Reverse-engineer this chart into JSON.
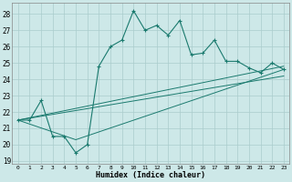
{
  "xlabel": "Humidex (Indice chaleur)",
  "bg_color": "#cde8e8",
  "grid_color": "#aacccc",
  "line_color": "#1a7a6e",
  "xlim": [
    -0.5,
    23.5
  ],
  "ylim": [
    18.8,
    28.7
  ],
  "yticks": [
    19,
    20,
    21,
    22,
    23,
    24,
    25,
    26,
    27,
    28
  ],
  "xticks": [
    0,
    1,
    2,
    3,
    4,
    5,
    6,
    7,
    8,
    9,
    10,
    11,
    12,
    13,
    14,
    15,
    16,
    17,
    18,
    19,
    20,
    21,
    22,
    23
  ],
  "line1_x": [
    0,
    1,
    2,
    3,
    4,
    5,
    6,
    7,
    8,
    9,
    10,
    11,
    12,
    13,
    14,
    15,
    16,
    17,
    18,
    19,
    20,
    21,
    22,
    23
  ],
  "line1_y": [
    21.5,
    21.5,
    22.7,
    20.5,
    20.5,
    19.5,
    20.0,
    24.8,
    26.0,
    26.4,
    28.2,
    27.0,
    27.3,
    26.7,
    27.6,
    25.5,
    25.6,
    26.4,
    25.1,
    25.1,
    24.7,
    24.4,
    25.0,
    24.6
  ],
  "line2_x": [
    0,
    5,
    23
  ],
  "line2_y": [
    21.5,
    20.3,
    24.6
  ],
  "line3_x": [
    0,
    23
  ],
  "line3_y": [
    21.5,
    24.8
  ],
  "line4_x": [
    0,
    23
  ],
  "line4_y": [
    21.5,
    24.2
  ]
}
